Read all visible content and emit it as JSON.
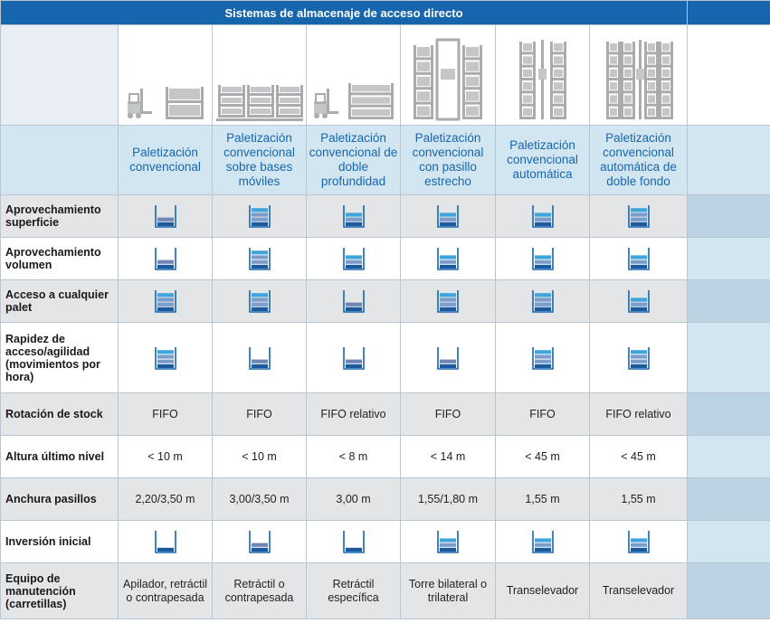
{
  "title": "Sistemas de almacenaje de acceso directo",
  "systems": [
    {
      "name": "Paletización convencional",
      "image": "forklift-rack-icon"
    },
    {
      "name": "Paletización convencional sobre bases móviles",
      "image": "mobile-racks-icon"
    },
    {
      "name": "Paletización convencional de doble profundidad",
      "image": "forklift-double-deep-icon"
    },
    {
      "name": "Paletización convencional con pasillo estrecho",
      "image": "narrow-aisle-icon"
    },
    {
      "name": "Paletización convencional automática",
      "image": "automatic-rack-icon"
    },
    {
      "name": "Paletización convencional automática de doble fondo",
      "image": "automatic-double-rack-icon"
    }
  ],
  "criteria": [
    {
      "label": "Aprovechamiento superficie",
      "type": "gauge",
      "levels": [
        2,
        4,
        3,
        3,
        3,
        4
      ]
    },
    {
      "label": "Aprovechamiento volumen",
      "type": "gauge",
      "levels": [
        2,
        4,
        3,
        3,
        3,
        3
      ]
    },
    {
      "label": "Acceso a cualquier palet",
      "type": "gauge",
      "levels": [
        4,
        4,
        2,
        4,
        4,
        3
      ]
    },
    {
      "label": "Rapidez de acceso/agilidad (movimientos por hora)",
      "type": "gauge",
      "levels": [
        4,
        2,
        2,
        2,
        4,
        4
      ]
    },
    {
      "label": "Rotación de stock",
      "type": "text",
      "values": [
        "FIFO",
        "FIFO",
        "FIFO relativo",
        "FIFO",
        "FIFO",
        "FIFO relativo"
      ]
    },
    {
      "label": "Altura último nivel",
      "type": "text",
      "values": [
        "< 10 m",
        "< 10 m",
        "< 8 m",
        "< 14 m",
        "< 45 m",
        "< 45 m"
      ]
    },
    {
      "label": "Anchura pasillos",
      "type": "text",
      "values": [
        "2,20/3,50 m",
        "3,00/3,50 m",
        "3,00 m",
        "1,55/1,80 m",
        "1,55 m",
        "1,55 m"
      ]
    },
    {
      "label": "Inversión inicial",
      "type": "gauge",
      "levels": [
        1,
        2,
        1,
        3,
        3,
        3
      ]
    },
    {
      "label": "Equipo de manutención (carretillas)",
      "type": "text",
      "values": [
        "Apilador, retráctil o contrapesada",
        "Retráctil o contrapesada",
        "Retráctil específica",
        "Torre bilateral o trilateral",
        "Transelevador",
        "Transelevador"
      ]
    }
  ],
  "colors": {
    "header": "#1766ad",
    "name_row": "#d2e6f2",
    "gray_row": "#e4e5e7",
    "gauge_frame": "#1766ad"
  }
}
